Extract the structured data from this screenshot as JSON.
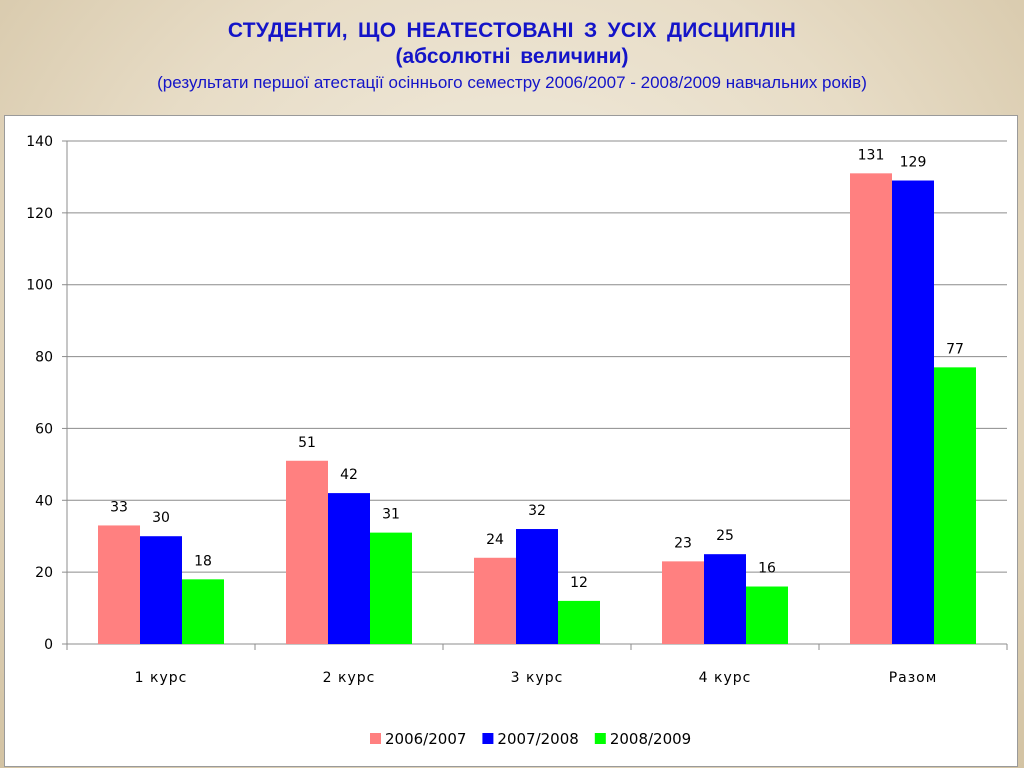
{
  "title": {
    "line1": "СТУДЕНТИ,  ЩО  НЕАТЕСТОВАНІ  З  УСІХ  ДИСЦИПЛІН",
    "line2": "(абсолютні  величини)",
    "subtitle": "(результати першої атестації осіннього семестру 2006/2007 - 2008/2009 навчальних років)"
  },
  "colors": {
    "title": "#1414c8",
    "series": [
      "#ff8080",
      "#0000ff",
      "#00ff00"
    ]
  },
  "chart_data": {
    "type": "bar",
    "title": "СТУДЕНТИ,  ЩО  НЕАТЕСТОВАНІ  З  УСІХ  ДИСЦИПЛІН (абсолютні  величини)",
    "xlabel": "",
    "ylabel": "",
    "categories": [
      "1 курс",
      "2 курс",
      "3 курс",
      "4 курс",
      "Разом"
    ],
    "series": [
      {
        "name": "2006/2007",
        "values": [
          33,
          51,
          24,
          23,
          131
        ]
      },
      {
        "name": "2007/2008",
        "values": [
          30,
          42,
          32,
          25,
          129
        ]
      },
      {
        "name": "2008/2009",
        "values": [
          18,
          31,
          12,
          16,
          77
        ]
      }
    ],
    "ylim": [
      0,
      140
    ],
    "yticks": [
      0,
      20,
      40,
      60,
      80,
      100,
      120,
      140
    ],
    "grid": true,
    "legend": "bottom"
  }
}
